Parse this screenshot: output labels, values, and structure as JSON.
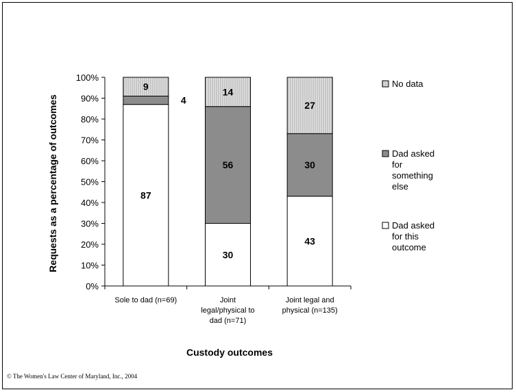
{
  "chart_data": {
    "type": "bar",
    "stacked": true,
    "categories": [
      [
        "Sole to dad (n=69)"
      ],
      [
        "Joint",
        "legal/physical to",
        "dad (n=71)"
      ],
      [
        "Joint legal and",
        "physical (n=135)"
      ]
    ],
    "series": [
      {
        "name": "Dad asked for this outcome",
        "values": [
          87,
          30,
          43
        ],
        "color": "#ffffff",
        "pattern": "none"
      },
      {
        "name": "Dad asked for something else",
        "values": [
          4,
          56,
          30
        ],
        "color": "#8c8c8c",
        "pattern": "none"
      },
      {
        "name": "No data",
        "values": [
          9,
          14,
          27
        ],
        "color": "#d6d6d6",
        "pattern": "vertical-lines"
      }
    ],
    "data_labels": [
      {
        "category": 0,
        "series": 0,
        "text": "87"
      },
      {
        "category": 0,
        "series": 1,
        "text": "4",
        "placement": "outside-right"
      },
      {
        "category": 0,
        "series": 2,
        "text": "9"
      },
      {
        "category": 1,
        "series": 0,
        "text": "30"
      },
      {
        "category": 1,
        "series": 1,
        "text": "56"
      },
      {
        "category": 1,
        "series": 2,
        "text": "14"
      },
      {
        "category": 2,
        "series": 0,
        "text": "43"
      },
      {
        "category": 2,
        "series": 1,
        "text": "30"
      },
      {
        "category": 2,
        "series": 2,
        "text": "27"
      }
    ],
    "yticks": [
      "0%",
      "10%",
      "20%",
      "30%",
      "40%",
      "50%",
      "60%",
      "70%",
      "80%",
      "90%",
      "100%"
    ],
    "ylim": [
      0,
      100
    ],
    "xlabel": "Custody outcomes",
    "ylabel": "Requests as a percentage of outcomes",
    "legend": {
      "placement": "right",
      "entries": [
        {
          "series": 2,
          "lines": [
            "No data"
          ]
        },
        {
          "series": 1,
          "lines": [
            "Dad asked",
            "for",
            "something",
            "else"
          ]
        },
        {
          "series": 0,
          "lines": [
            "Dad asked",
            "for this",
            "outcome"
          ]
        }
      ]
    },
    "grid": false
  },
  "footer": {
    "copyright": "© The Women's Law Center of Maryland, Inc., 2004"
  }
}
